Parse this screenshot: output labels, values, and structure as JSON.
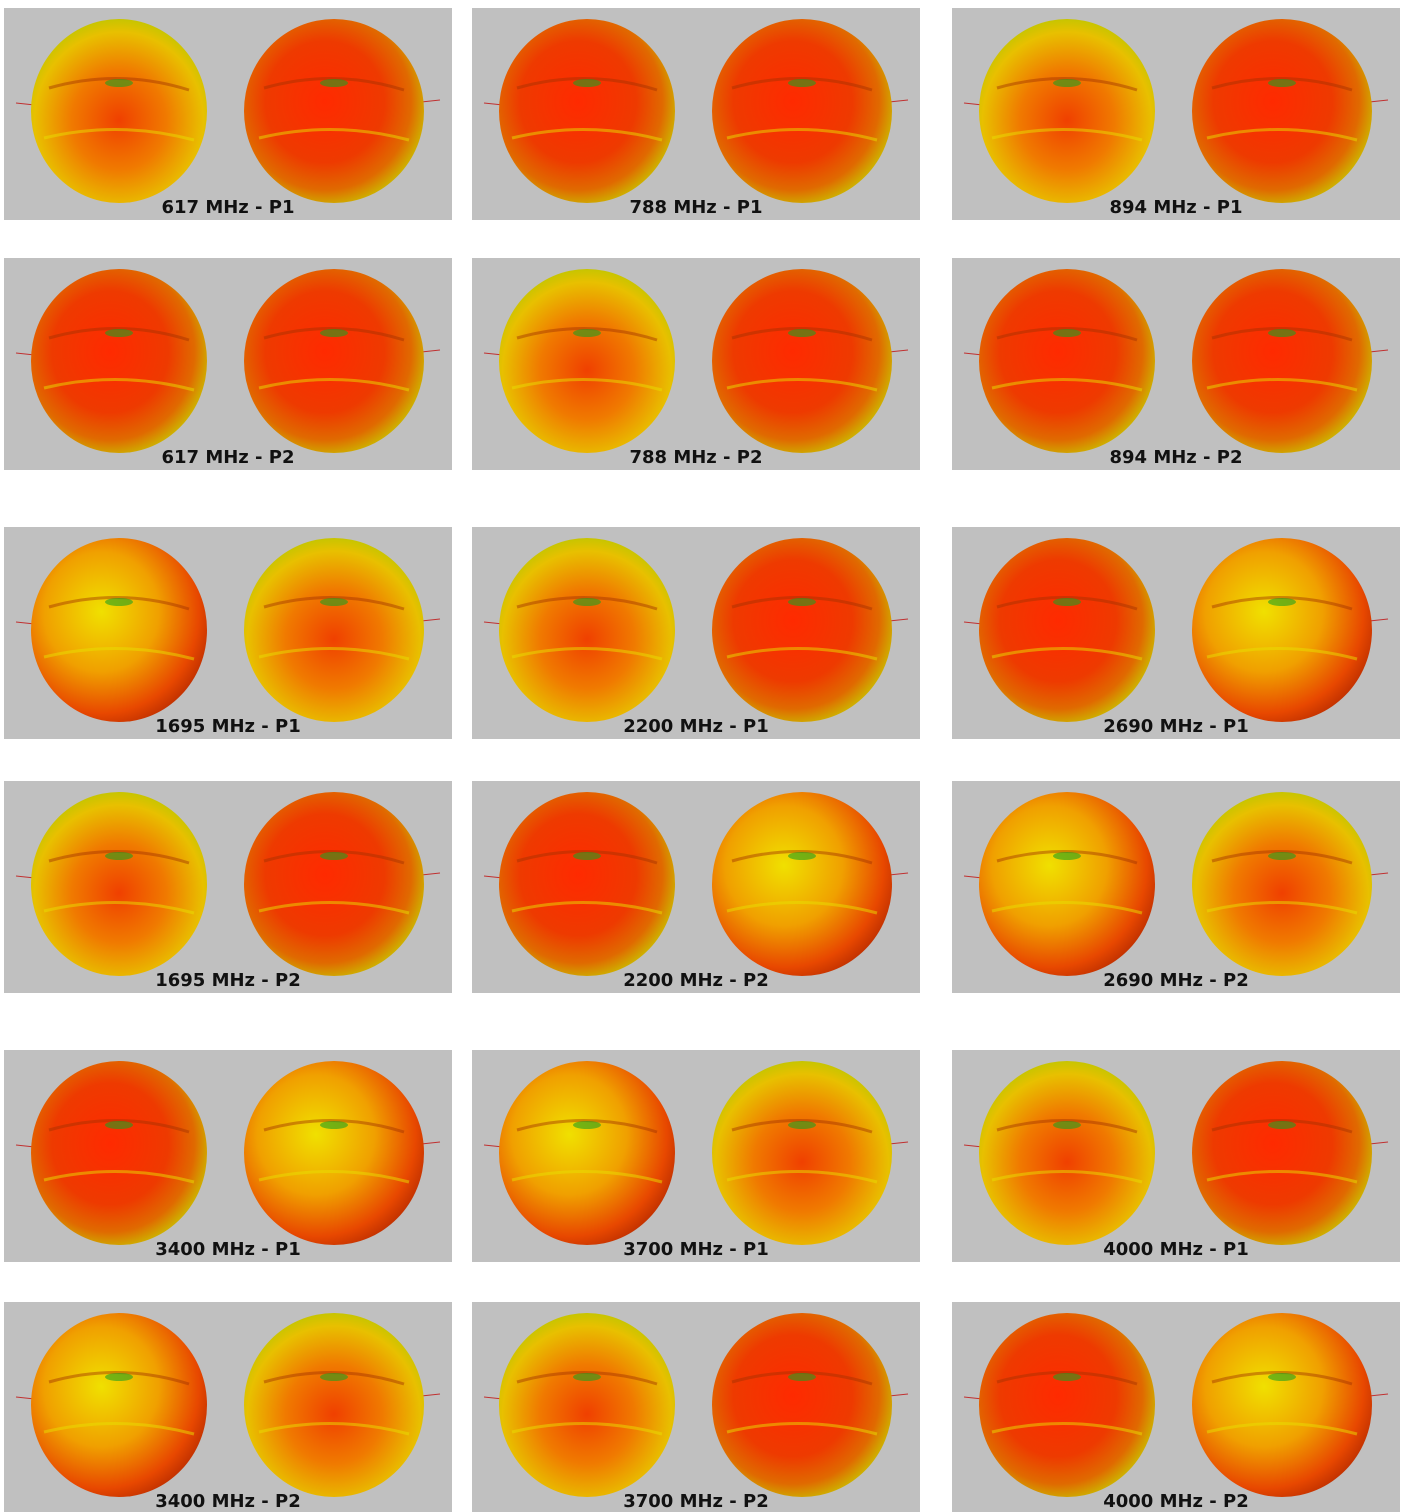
{
  "panels": [
    {
      "label": "617 MHz - P1"
    },
    {
      "label": "788 MHz - P1"
    },
    {
      "label": "894 MHz - P1"
    },
    {
      "label": "617 MHz - P2"
    },
    {
      "label": "788 MHz - P2"
    },
    {
      "label": "894 MHz - P2"
    },
    {
      "label": "1695 MHz - P1"
    },
    {
      "label": "2200 MHz - P1"
    },
    {
      "label": "2690 MHz - P1"
    },
    {
      "label": "1695 MHz - P2"
    },
    {
      "label": "2200 MHz - P2"
    },
    {
      "label": "2690 MHz - P2"
    },
    {
      "label": "3400 MHz - P1"
    },
    {
      "label": "3700 MHz - P1"
    },
    {
      "label": "4000 MHz - P1"
    },
    {
      "label": "3400 MHz - P2"
    },
    {
      "label": "3700 MHz - P2"
    },
    {
      "label": "4000 MHz - P2"
    }
  ]
}
